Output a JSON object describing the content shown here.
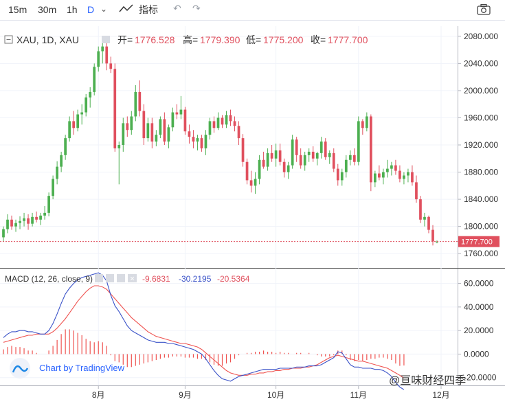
{
  "toolbar": {
    "intervals": [
      "15m",
      "30m",
      "1h",
      "D"
    ],
    "active_interval": "D",
    "indicators_label": "指标"
  },
  "legend": {
    "symbol": "XAU, 1D, XAU",
    "open_label": "开=",
    "open": "1776.528",
    "high_label": "高=",
    "high": "1779.390",
    "low_label": "低=",
    "low": "1775.200",
    "close_label": "收=",
    "close": "1777.700"
  },
  "macd_legend": {
    "title": "MACD (12, 26, close, 9)",
    "hist": "-9.6831",
    "macd": "-30.2195",
    "signal": "-20.5364"
  },
  "price_label": "1777.700",
  "branding": {
    "text": "Chart by TradingView",
    "watermark": "@亘味财经四季"
  },
  "colors": {
    "up": "#4caf50",
    "down": "#e0505e",
    "macd_line": "#3a52c8",
    "signal_line": "#ef5350",
    "last_price": "#e0505e"
  },
  "chart_data": [
    {
      "type": "candlestick",
      "symbol": "XAU",
      "interval": "1D",
      "y_ticks": [
        1760,
        1800,
        1840,
        1880,
        1920,
        1960,
        2000,
        2040,
        2080
      ],
      "x_ticks": [
        "8月",
        "9月",
        "10月",
        "11月",
        "12月"
      ],
      "ylim": [
        1745,
        2095
      ],
      "last_close": 1777.7,
      "candles": [
        [
          1784,
          1800,
          1778,
          1796
        ],
        [
          1796,
          1818,
          1790,
          1810
        ],
        [
          1810,
          1816,
          1795,
          1800
        ],
        [
          1800,
          1810,
          1792,
          1805
        ],
        [
          1805,
          1815,
          1796,
          1808
        ],
        [
          1808,
          1820,
          1800,
          1812
        ],
        [
          1812,
          1818,
          1795,
          1804
        ],
        [
          1804,
          1820,
          1800,
          1814
        ],
        [
          1814,
          1822,
          1806,
          1810
        ],
        [
          1810,
          1820,
          1802,
          1816
        ],
        [
          1816,
          1830,
          1810,
          1820
        ],
        [
          1820,
          1850,
          1815,
          1845
        ],
        [
          1845,
          1875,
          1840,
          1870
        ],
        [
          1870,
          1896,
          1862,
          1888
        ],
        [
          1888,
          1910,
          1880,
          1905
        ],
        [
          1905,
          1935,
          1898,
          1930
        ],
        [
          1930,
          1962,
          1925,
          1955
        ],
        [
          1955,
          1970,
          1935,
          1945
        ],
        [
          1945,
          1972,
          1940,
          1965
        ],
        [
          1965,
          1980,
          1950,
          1968
        ],
        [
          1968,
          1995,
          1962,
          1990
        ],
        [
          1990,
          2005,
          1975,
          1998
        ],
        [
          1998,
          2040,
          1993,
          2035
        ],
        [
          2035,
          2065,
          2028,
          2058
        ],
        [
          2058,
          2073,
          2040,
          2065
        ],
        [
          2065,
          2072,
          2030,
          2040
        ],
        [
          2040,
          2050,
          2026,
          2032
        ],
        [
          2032,
          2040,
          1910,
          1915
        ],
        [
          1915,
          1925,
          1862,
          1920
        ],
        [
          1920,
          1960,
          1910,
          1952
        ],
        [
          1952,
          1962,
          1932,
          1942
        ],
        [
          1942,
          1970,
          1935,
          1962
        ],
        [
          1962,
          2008,
          1955,
          1998
        ],
        [
          1998,
          2015,
          1962,
          1970
        ],
        [
          1970,
          1980,
          1920,
          1930
        ],
        [
          1930,
          1960,
          1925,
          1952
        ],
        [
          1952,
          1960,
          1915,
          1925
        ],
        [
          1925,
          1942,
          1918,
          1935
        ],
        [
          1935,
          1962,
          1930,
          1958
        ],
        [
          1958,
          1968,
          1920,
          1925
        ],
        [
          1925,
          1950,
          1915,
          1946
        ],
        [
          1946,
          1975,
          1940,
          1968
        ],
        [
          1968,
          1980,
          1958,
          1965
        ],
        [
          1965,
          1992,
          1958,
          1972
        ],
        [
          1972,
          1976,
          1935,
          1940
        ],
        [
          1940,
          1950,
          1922,
          1932
        ],
        [
          1932,
          1942,
          1915,
          1925
        ],
        [
          1925,
          1935,
          1912,
          1930
        ],
        [
          1930,
          1935,
          1910,
          1915
        ],
        [
          1915,
          1942,
          1905,
          1935
        ],
        [
          1935,
          1960,
          1928,
          1955
        ],
        [
          1955,
          1962,
          1938,
          1945
        ],
        [
          1945,
          1968,
          1942,
          1960
        ],
        [
          1960,
          1964,
          1945,
          1950
        ],
        [
          1950,
          1970,
          1945,
          1964
        ],
        [
          1964,
          1972,
          1948,
          1955
        ],
        [
          1955,
          1962,
          1940,
          1948
        ],
        [
          1948,
          1955,
          1920,
          1930
        ],
        [
          1930,
          1936,
          1888,
          1895
        ],
        [
          1895,
          1900,
          1862,
          1868
        ],
        [
          1868,
          1882,
          1850,
          1860
        ],
        [
          1860,
          1880,
          1848,
          1870
        ],
        [
          1870,
          1905,
          1862,
          1898
        ],
        [
          1898,
          1910,
          1885,
          1888
        ],
        [
          1888,
          1915,
          1882,
          1908
        ],
        [
          1908,
          1920,
          1895,
          1900
        ],
        [
          1900,
          1922,
          1888,
          1912
        ],
        [
          1912,
          1922,
          1890,
          1895
        ],
        [
          1895,
          1900,
          1872,
          1880
        ],
        [
          1880,
          1895,
          1870,
          1890
        ],
        [
          1890,
          1935,
          1885,
          1928
        ],
        [
          1928,
          1932,
          1895,
          1905
        ],
        [
          1905,
          1915,
          1885,
          1890
        ],
        [
          1890,
          1910,
          1882,
          1905
        ],
        [
          1905,
          1915,
          1895,
          1910
        ],
        [
          1910,
          1918,
          1895,
          1900
        ],
        [
          1900,
          1910,
          1890,
          1908
        ],
        [
          1908,
          1932,
          1900,
          1925
        ],
        [
          1925,
          1930,
          1898,
          1902
        ],
        [
          1902,
          1912,
          1892,
          1908
        ],
        [
          1908,
          1915,
          1880,
          1885
        ],
        [
          1885,
          1892,
          1860,
          1868
        ],
        [
          1868,
          1885,
          1860,
          1880
        ],
        [
          1880,
          1905,
          1872,
          1898
        ],
        [
          1898,
          1912,
          1890,
          1905
        ],
        [
          1905,
          1915,
          1890,
          1895
        ],
        [
          1895,
          1962,
          1890,
          1955
        ],
        [
          1955,
          1958,
          1935,
          1945
        ],
        [
          1945,
          1968,
          1940,
          1962
        ],
        [
          1962,
          1965,
          1852,
          1865
        ],
        [
          1865,
          1882,
          1858,
          1878
        ],
        [
          1878,
          1890,
          1868,
          1872
        ],
        [
          1872,
          1885,
          1862,
          1880
        ],
        [
          1880,
          1898,
          1872,
          1885
        ],
        [
          1885,
          1895,
          1875,
          1890
        ],
        [
          1890,
          1898,
          1876,
          1882
        ],
        [
          1882,
          1890,
          1865,
          1870
        ],
        [
          1870,
          1880,
          1862,
          1875
        ],
        [
          1875,
          1885,
          1865,
          1880
        ],
        [
          1880,
          1890,
          1860,
          1865
        ],
        [
          1865,
          1875,
          1835,
          1840
        ],
        [
          1840,
          1845,
          1805,
          1810
        ],
        [
          1810,
          1820,
          1800,
          1814
        ],
        [
          1814,
          1816,
          1790,
          1795
        ],
        [
          1795,
          1802,
          1772,
          1778
        ],
        [
          1776.528,
          1779.39,
          1775.2,
          1777.7
        ]
      ]
    },
    {
      "type": "line",
      "title": "MACD (12, 26, close, 9)",
      "series": [
        {
          "name": "MACD",
          "values": [
            14,
            17,
            19,
            19,
            20,
            20,
            19,
            19,
            18,
            17,
            17,
            20,
            26,
            34,
            43,
            51,
            56,
            60,
            63,
            65,
            66,
            67,
            68,
            69,
            67,
            62,
            50,
            41,
            36,
            30,
            24,
            20,
            18,
            16,
            14,
            12,
            11,
            10,
            10,
            10,
            9,
            9,
            8,
            7,
            6,
            5,
            4,
            2,
            0,
            -4,
            -9,
            -14,
            -18,
            -21,
            -22,
            -23,
            -21,
            -19,
            -18,
            -17,
            -16,
            -15,
            -14,
            -13,
            -13,
            -13,
            -13,
            -12,
            -12,
            -12,
            -12,
            -11,
            -11,
            -11,
            -10,
            -10,
            -10,
            -9,
            -7,
            -5,
            -3,
            2,
            1,
            -4,
            -9,
            -11,
            -11,
            -12,
            -12,
            -12,
            -13,
            -13,
            -14,
            -16,
            -19,
            -24,
            -28,
            -30.2195
          ]
        },
        {
          "name": "Signal",
          "values": [
            10,
            11,
            12,
            13,
            14,
            15,
            16,
            16,
            17,
            17,
            17,
            17,
            19,
            22,
            26,
            30,
            35,
            40,
            45,
            49,
            53,
            56,
            58,
            58,
            57,
            55,
            51,
            47,
            43,
            39,
            35,
            31,
            28,
            25,
            22,
            19,
            17,
            15,
            14,
            13,
            12,
            11,
            10,
            9,
            9,
            8,
            7,
            6,
            4,
            1,
            -2,
            -5,
            -8,
            -11,
            -14,
            -16,
            -17,
            -18,
            -18,
            -18,
            -17,
            -17,
            -16,
            -16,
            -15,
            -15,
            -14,
            -14,
            -13,
            -13,
            -12,
            -12,
            -12,
            -11,
            -11,
            -10,
            -9,
            -7,
            -5,
            -3,
            -2,
            -1,
            -2,
            -3,
            -4,
            -5,
            -6,
            -6,
            -7,
            -8,
            -9,
            -10,
            -11,
            -12,
            -14,
            -16,
            -18,
            -20.5364
          ]
        }
      ],
      "y_ticks": [
        -20,
        0,
        20,
        40,
        60
      ],
      "ylim": [
        -26,
        72
      ]
    }
  ]
}
